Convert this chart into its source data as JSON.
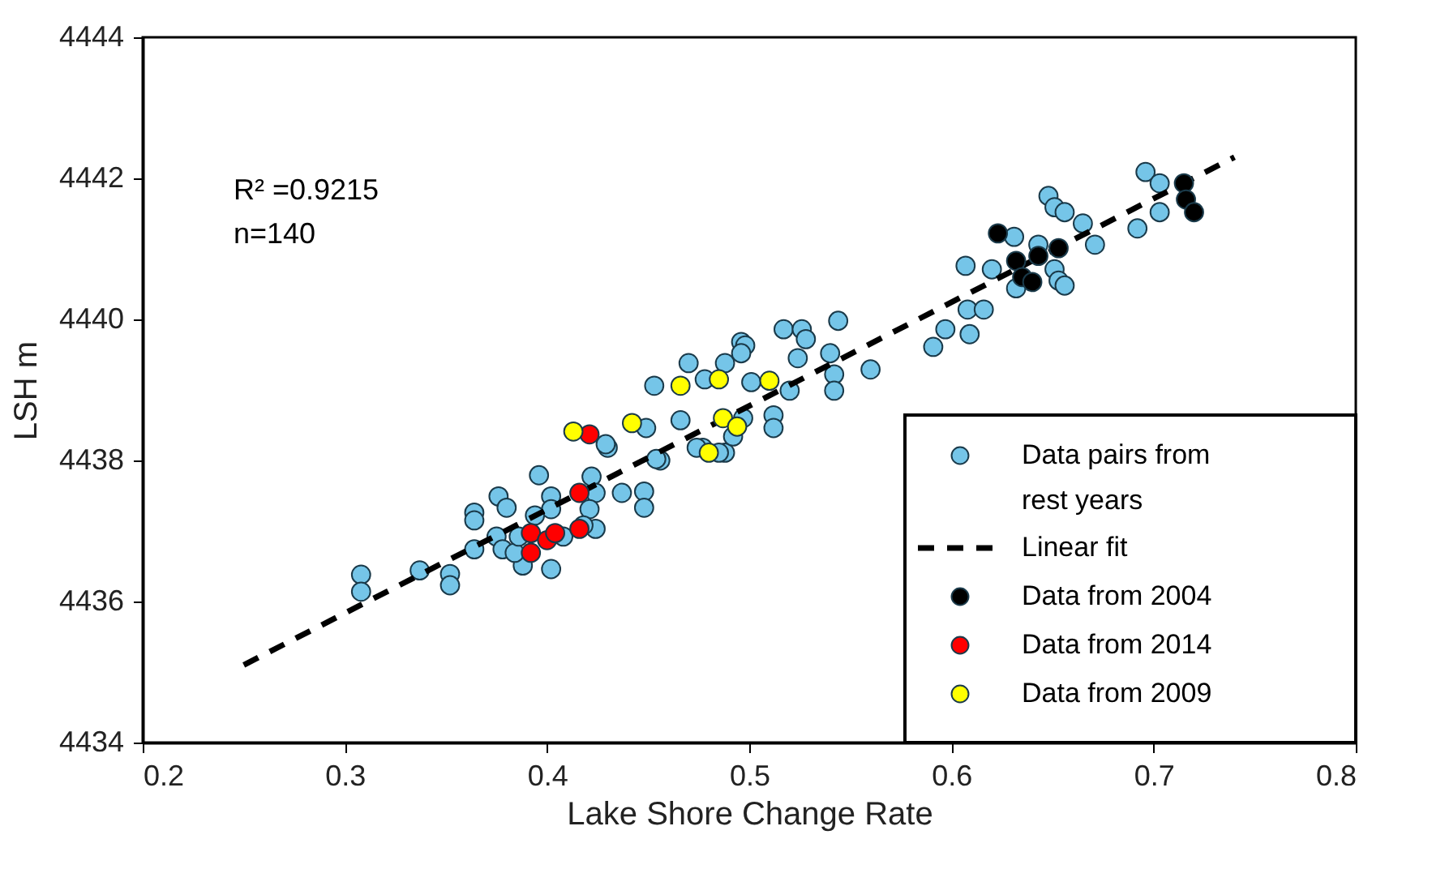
{
  "chart_data": {
    "type": "scatter",
    "xlabel": "Lake Shore Change Rate",
    "ylabel": "LSH  m",
    "xlim": [
      0.2,
      0.8
    ],
    "xticks": [
      0.2,
      0.3,
      0.4,
      0.5,
      0.6,
      0.7,
      0.8
    ],
    "ylim": [
      4434,
      4444
    ],
    "yticks": [
      4434,
      4436,
      4438,
      4440,
      4442,
      4444
    ],
    "grid": false,
    "legend": "bottom right",
    "marker": "circle",
    "annotations": [
      "R² =0.9215",
      "n=140"
    ],
    "series": [
      {
        "name": "Data pairs from rest years",
        "color": "#75c5e8",
        "x": [
          0.308,
          0.308,
          0.337,
          0.352,
          0.352,
          0.364,
          0.364,
          0.364,
          0.376,
          0.38,
          0.375,
          0.378,
          0.396,
          0.402,
          0.402,
          0.394,
          0.388,
          0.402,
          0.384,
          0.386,
          0.408,
          0.422,
          0.424,
          0.421,
          0.424,
          0.418,
          0.43,
          0.437,
          0.448,
          0.448,
          0.456,
          0.477,
          0.488,
          0.453,
          0.47,
          0.478,
          0.488,
          0.496,
          0.498,
          0.496,
          0.501,
          0.517,
          0.526,
          0.528,
          0.524,
          0.54,
          0.544,
          0.542,
          0.542,
          0.56,
          0.52,
          0.512,
          0.512,
          0.466,
          0.449,
          0.429,
          0.454,
          0.474,
          0.485,
          0.492,
          0.497,
          0.591,
          0.597,
          0.609,
          0.608,
          0.616,
          0.607,
          0.62,
          0.631,
          0.632,
          0.643,
          0.651,
          0.653,
          0.656,
          0.648,
          0.651,
          0.656,
          0.665,
          0.671,
          0.692,
          0.696,
          0.703,
          0.703
        ],
        "values": [
          4436.38,
          4436.14,
          4436.44,
          4436.39,
          4436.23,
          4437.26,
          4437.15,
          4436.74,
          4437.49,
          4437.33,
          4436.92,
          4436.74,
          4437.79,
          4437.49,
          4437.31,
          4437.22,
          4436.51,
          4436.46,
          4436.69,
          4436.92,
          4436.92,
          4437.77,
          4437.54,
          4437.31,
          4437.03,
          4437.08,
          4438.18,
          4437.54,
          4437.56,
          4437.33,
          4438.0,
          4438.18,
          4438.11,
          4439.06,
          4439.38,
          4439.15,
          4439.38,
          4439.68,
          4439.63,
          4439.52,
          4439.11,
          4439.86,
          4439.86,
          4439.72,
          4439.45,
          4439.52,
          4439.98,
          4439.22,
          4438.99,
          4439.29,
          4438.99,
          4438.64,
          4438.46,
          4438.57,
          4438.46,
          4438.23,
          4438.02,
          4438.18,
          4438.11,
          4438.34,
          4438.6,
          4439.61,
          4439.86,
          4439.79,
          4440.14,
          4440.14,
          4440.76,
          4440.71,
          4441.17,
          4440.44,
          4441.06,
          4440.71,
          4440.55,
          4440.48,
          4441.75,
          4441.59,
          4441.52,
          4441.36,
          4441.06,
          4441.29,
          4442.09,
          4441.93,
          4441.52
        ]
      },
      {
        "name": "Linear fit",
        "type": "line",
        "color": "#000000",
        "line_style": "dashed",
        "marker": "none",
        "x": [
          0.25,
          0.74
        ],
        "values": [
          4435.1,
          4442.3
        ]
      },
      {
        "name": "Data from 2004",
        "color": "#000000",
        "x": [
          0.623,
          0.632,
          0.635,
          0.64,
          0.643,
          0.653,
          0.715,
          0.716,
          0.72
        ],
        "values": [
          4441.22,
          4440.83,
          4440.6,
          4440.53,
          4440.9,
          4441.01,
          4441.93,
          4441.7,
          4441.52
        ]
      },
      {
        "name": "Data from 2014",
        "color": "#ff0000",
        "x": [
          0.392,
          0.4,
          0.404,
          0.392,
          0.416,
          0.416,
          0.421
        ],
        "values": [
          4436.97,
          4436.87,
          4436.97,
          4436.69,
          4437.03,
          4437.54,
          4438.37
        ]
      },
      {
        "name": "Data from 2009",
        "color": "#ffff00",
        "x": [
          0.413,
          0.442,
          0.48,
          0.466,
          0.485,
          0.51,
          0.487,
          0.494
        ],
        "values": [
          4438.41,
          4438.53,
          4438.11,
          4439.06,
          4439.15,
          4439.13,
          4438.6,
          4438.48
        ]
      }
    ]
  }
}
